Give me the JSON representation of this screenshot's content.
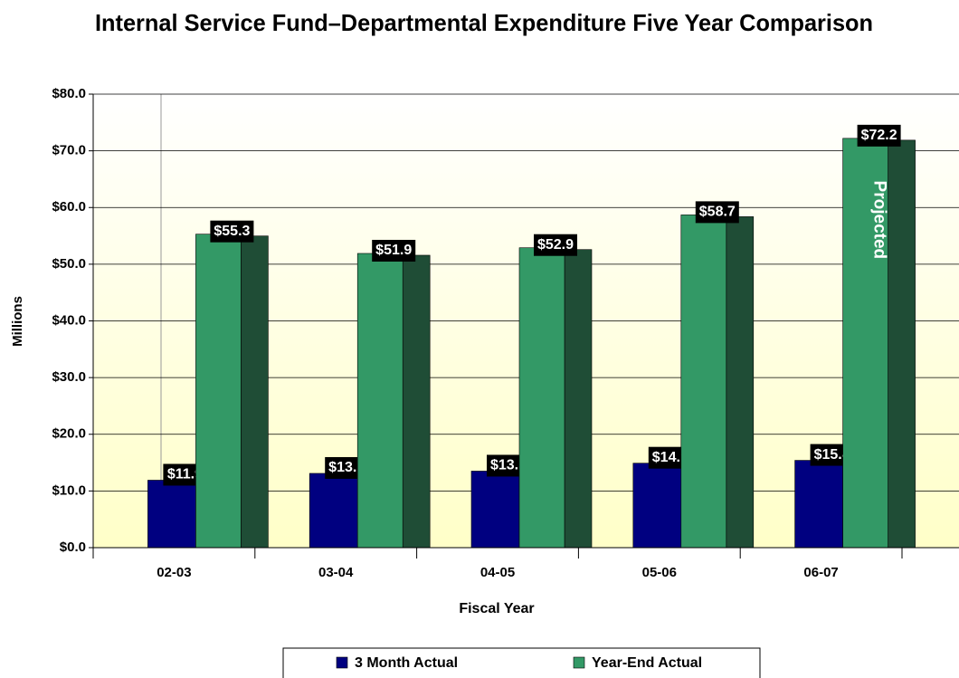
{
  "chart_data": {
    "type": "bar",
    "title": "Internal Service Fund–Departmental Expenditure Five Year Comparison",
    "y_label": "Millions",
    "x_label": "Fiscal Year",
    "annotation": "Projected",
    "categories": [
      "02-03",
      "03-04",
      "04-05",
      "05-06",
      "06-07"
    ],
    "series": [
      {
        "name": "3 Month Actual",
        "color": "#000080",
        "values": [
          11.9,
          13.1,
          13.5,
          14.9,
          15.4
        ],
        "value_labels": [
          "$11.9",
          "$13.1",
          "$13.5",
          "$14.9",
          "$15.4"
        ]
      },
      {
        "name": "Year-End Actual",
        "color": "#339966",
        "values": [
          55.3,
          51.9,
          52.9,
          58.7,
          72.2
        ],
        "value_labels": [
          "$55.3",
          "$51.9",
          "$52.9",
          "$58.7",
          "$72.2"
        ]
      }
    ],
    "ylim": [
      0,
      80
    ],
    "yticks": [
      {
        "value": 0,
        "label": "$0.0"
      },
      {
        "value": 10,
        "label": "$10.0"
      },
      {
        "value": 20,
        "label": "$20.0"
      },
      {
        "value": 30,
        "label": "$30.0"
      },
      {
        "value": 40,
        "label": "$40.0"
      },
      {
        "value": 50,
        "label": "$50.0"
      },
      {
        "value": 60,
        "label": "$60.0"
      },
      {
        "value": 70,
        "label": "$70.0"
      },
      {
        "value": 80,
        "label": "$80.0"
      }
    ],
    "grid": true,
    "legend": "bottom"
  }
}
